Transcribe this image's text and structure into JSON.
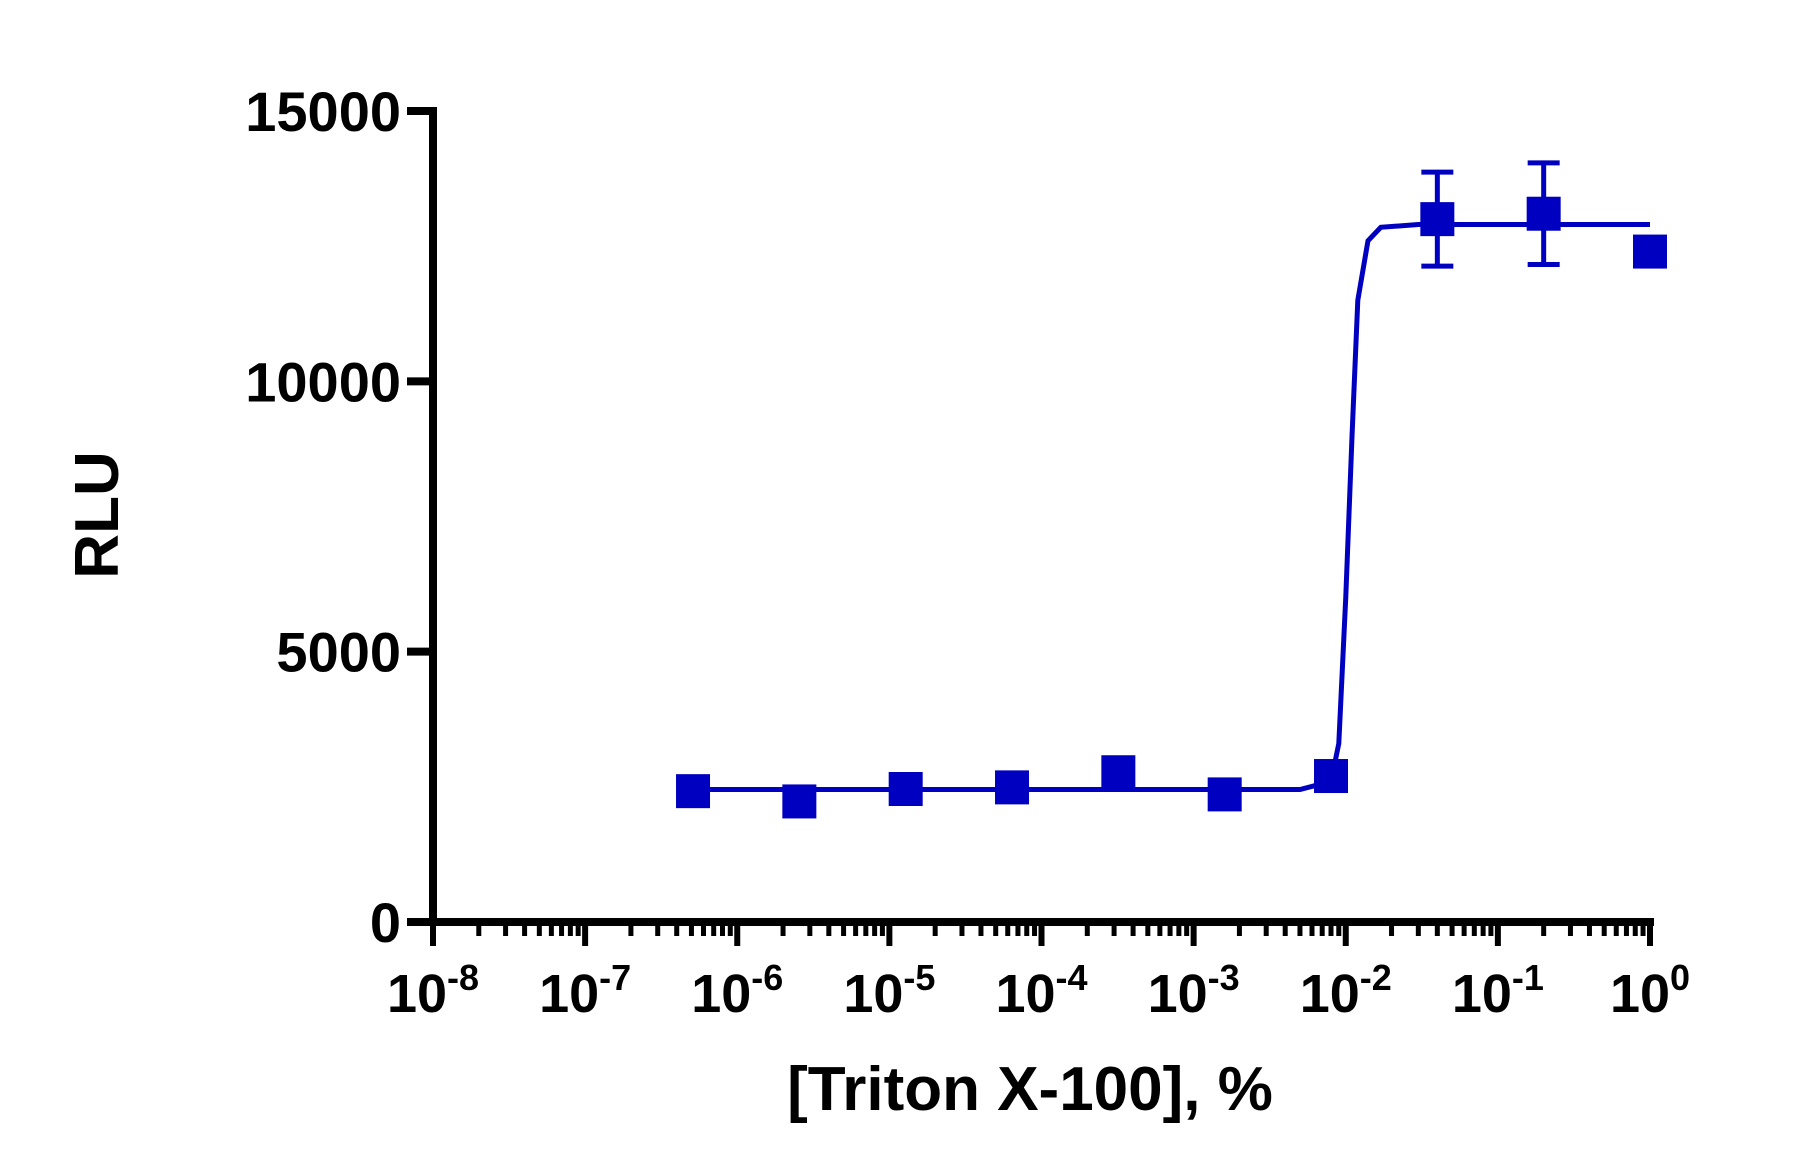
{
  "chart_data": {
    "type": "scatter",
    "x_label": "[Triton X-100], %",
    "y_label": "RLU",
    "xscale": "log",
    "xlim": [
      1e-08,
      1
    ],
    "ylim": [
      0,
      15000
    ],
    "xticks": [
      {
        "value": 1e-08,
        "label": "10",
        "exponent": "-8"
      },
      {
        "value": 1e-07,
        "label": "10",
        "exponent": "-7"
      },
      {
        "value": 1e-06,
        "label": "10",
        "exponent": "-6"
      },
      {
        "value": 1e-05,
        "label": "10",
        "exponent": "-5"
      },
      {
        "value": 0.0001,
        "label": "10",
        "exponent": "-4"
      },
      {
        "value": 0.001,
        "label": "10",
        "exponent": "-3"
      },
      {
        "value": 0.01,
        "label": "10",
        "exponent": "-2"
      },
      {
        "value": 0.1,
        "label": "10",
        "exponent": "-1"
      },
      {
        "value": 1,
        "label": "10",
        "exponent": "0"
      }
    ],
    "xminorticks": [
      2e-08,
      3e-08,
      4e-08,
      5e-08,
      6e-08,
      7e-08,
      8e-08,
      9e-08,
      2e-07,
      3e-07,
      4e-07,
      5e-07,
      6e-07,
      7e-07,
      8e-07,
      9e-07,
      2e-06,
      3e-06,
      4e-06,
      5e-06,
      6e-06,
      7e-06,
      8e-06,
      9e-06,
      2e-05,
      3e-05,
      4e-05,
      5e-05,
      6e-05,
      7e-05,
      8e-05,
      9e-05,
      0.0002,
      0.0003,
      0.0004,
      0.0005,
      0.0006,
      0.0007,
      0.0008,
      0.0009,
      0.002,
      0.003,
      0.004,
      0.005,
      0.006,
      0.007,
      0.008,
      0.009,
      0.02,
      0.03,
      0.04,
      0.05,
      0.06,
      0.07,
      0.08,
      0.09,
      0.2,
      0.3,
      0.4,
      0.5,
      0.6,
      0.7,
      0.8,
      0.9
    ],
    "yticks": [
      0,
      5000,
      10000,
      15000
    ],
    "x": [
      5.12e-07,
      2.56e-06,
      1.28e-05,
      6.4e-05,
      0.00032,
      0.0016,
      0.008,
      0.04,
      0.2,
      1
    ],
    "series": [
      {
        "color": "#0000c0",
        "values": [
          2420,
          2230,
          2460,
          2490,
          2770,
          2360,
          2700,
          13000,
          13100,
          12400
        ],
        "errors": [
          null,
          null,
          null,
          null,
          null,
          null,
          null,
          870,
          940,
          null
        ]
      }
    ],
    "fit": {
      "color": "#0000c0",
      "x": [
        5.12e-07,
        0.005,
        0.008,
        0.009,
        0.01,
        0.011,
        0.012,
        0.014,
        0.017,
        0.03,
        1
      ],
      "values": [
        2450,
        2450,
        2600,
        3300,
        6000,
        9000,
        11500,
        12600,
        12850,
        12900,
        12900
      ]
    }
  }
}
